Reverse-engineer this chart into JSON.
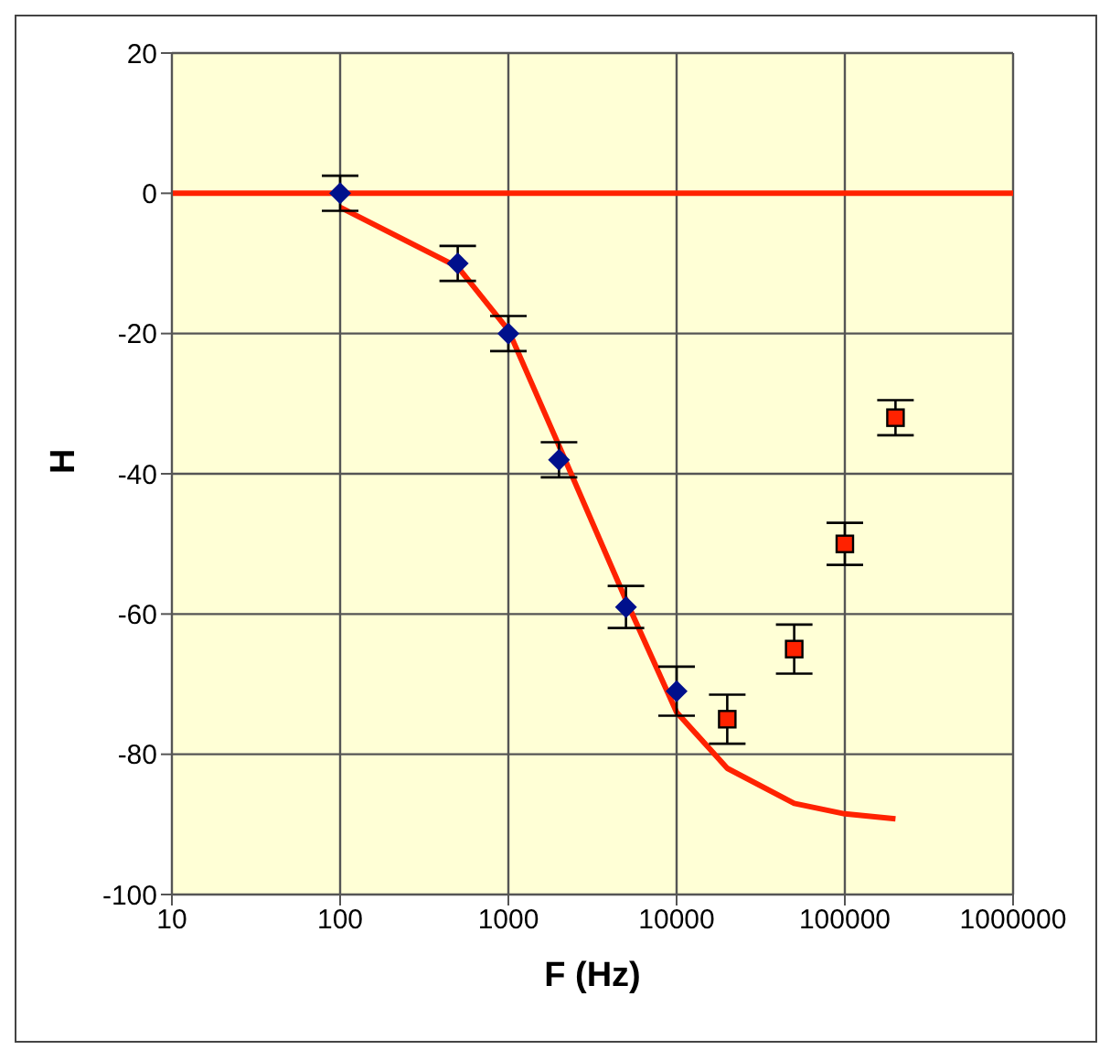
{
  "chart_data": {
    "type": "scatter",
    "xlabel": "F  (Hz)",
    "ylabel": "H",
    "log": "x",
    "xlim": [
      10,
      1000000
    ],
    "xticks": [
      10,
      100,
      1000,
      10000,
      100000,
      1000000
    ],
    "ylim": [
      -100,
      20
    ],
    "yticks": [
      -100,
      -80,
      -60,
      -40,
      -20,
      0,
      20
    ],
    "grid": true,
    "ref_lines": [
      {
        "axis": "y",
        "value": 0,
        "color": "#ff2200"
      }
    ],
    "series": [
      {
        "type": "line",
        "color": "#ff2200",
        "marker": "none",
        "x": [
          100,
          500,
          1000,
          2000,
          5000,
          10000,
          20000,
          50000,
          100000,
          200000
        ],
        "values": [
          -2,
          -10.5,
          -19.5,
          -36,
          -58,
          -74,
          -82,
          -87,
          -88.5,
          -89.2
        ]
      },
      {
        "color": "#00108c",
        "marker": "diamond",
        "x": [
          100,
          500,
          1000,
          2000,
          5000,
          10000
        ],
        "values": [
          0,
          -10,
          -20,
          -38,
          -59,
          -71
        ],
        "errors": [
          2.5,
          2.5,
          2.5,
          2.5,
          3,
          3.5
        ]
      },
      {
        "color": "#ff2200",
        "marker": "square",
        "x": [
          20000,
          50000,
          100000,
          200000
        ],
        "values": [
          -75,
          -65,
          -50,
          -32
        ],
        "errors": [
          3.5,
          3.5,
          3,
          2.5
        ]
      }
    ]
  }
}
